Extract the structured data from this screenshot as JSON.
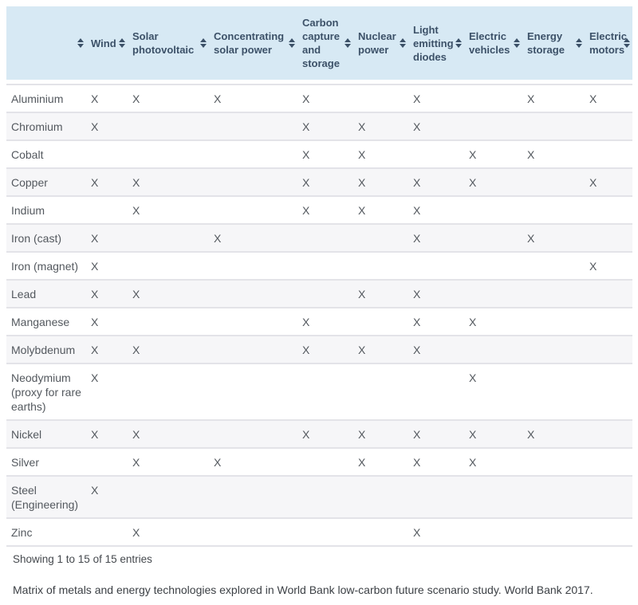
{
  "colors": {
    "header_bg": "#d7e9f4",
    "header_text": "#3c5168",
    "body_text": "#53585e",
    "stripe": "#f6f6f8",
    "border": "#e3e3e8"
  },
  "table": {
    "mark": "X",
    "sort_icon": "sort-arrows-icon",
    "columns": [
      {
        "key": "metal",
        "label": "",
        "sortable": true
      },
      {
        "key": "wind",
        "label": "Wind",
        "sortable": true
      },
      {
        "key": "solar-photovoltaic",
        "label": "Solar photovoltaic",
        "sortable": true
      },
      {
        "key": "concentrating-solar-power",
        "label": "Concentrating solar power",
        "sortable": true
      },
      {
        "key": "carbon-capture-and-storage",
        "label": "Carbon capture and storage",
        "sortable": true
      },
      {
        "key": "nuclear-power",
        "label": "Nuclear power",
        "sortable": true
      },
      {
        "key": "light-emitting-diodes",
        "label": "Light emitting diodes",
        "sortable": true
      },
      {
        "key": "electric-vehicles",
        "label": "Electric vehicles",
        "sortable": true
      },
      {
        "key": "energy-storage",
        "label": "Energy storage",
        "sortable": true
      },
      {
        "key": "electric-motors",
        "label": "Electric motors",
        "sortable": true
      }
    ],
    "rows": [
      {
        "metal": "Aluminium",
        "marks": [
          1,
          1,
          1,
          1,
          0,
          1,
          0,
          1,
          1
        ]
      },
      {
        "metal": "Chromium",
        "marks": [
          1,
          0,
          0,
          1,
          1,
          1,
          0,
          0,
          0
        ]
      },
      {
        "metal": "Cobalt",
        "marks": [
          0,
          0,
          0,
          1,
          1,
          0,
          1,
          1,
          0
        ]
      },
      {
        "metal": "Copper",
        "marks": [
          1,
          1,
          0,
          1,
          1,
          1,
          1,
          0,
          1
        ]
      },
      {
        "metal": "Indium",
        "marks": [
          0,
          1,
          0,
          1,
          1,
          1,
          0,
          0,
          0
        ]
      },
      {
        "metal": "Iron (cast)",
        "marks": [
          1,
          0,
          1,
          0,
          0,
          1,
          0,
          1,
          0
        ]
      },
      {
        "metal": "Iron (magnet)",
        "marks": [
          1,
          0,
          0,
          0,
          0,
          0,
          0,
          0,
          1
        ]
      },
      {
        "metal": "Lead",
        "marks": [
          1,
          1,
          0,
          0,
          1,
          1,
          0,
          0,
          0
        ]
      },
      {
        "metal": "Manganese",
        "marks": [
          1,
          0,
          0,
          1,
          0,
          1,
          1,
          0,
          0
        ]
      },
      {
        "metal": "Molybdenum",
        "marks": [
          1,
          1,
          0,
          1,
          1,
          1,
          0,
          0,
          0
        ]
      },
      {
        "metal": "Neodymium (proxy for rare earths)",
        "marks": [
          1,
          0,
          0,
          0,
          0,
          0,
          1,
          0,
          0
        ]
      },
      {
        "metal": "Nickel",
        "marks": [
          1,
          1,
          0,
          1,
          1,
          1,
          1,
          1,
          0
        ]
      },
      {
        "metal": "Silver",
        "marks": [
          0,
          1,
          1,
          0,
          1,
          1,
          1,
          0,
          0
        ]
      },
      {
        "metal": "Steel (Engineering)",
        "marks": [
          1,
          0,
          0,
          0,
          0,
          0,
          0,
          0,
          0
        ]
      },
      {
        "metal": "Zinc",
        "marks": [
          0,
          1,
          0,
          0,
          0,
          1,
          0,
          0,
          0
        ]
      }
    ]
  },
  "footer": {
    "showing_text": "Showing 1 to 15 of 15 entries",
    "caption": "Matrix of metals and energy technologies explored in World Bank low-carbon future scenario study. World Bank 2017."
  }
}
